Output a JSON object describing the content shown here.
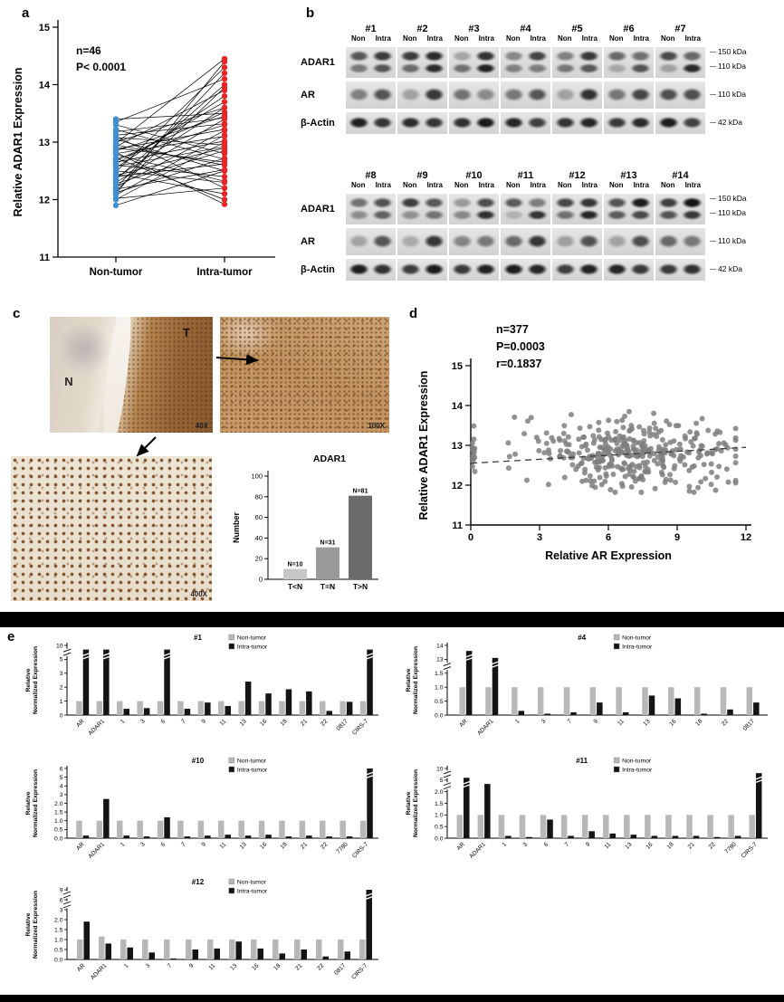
{
  "panel_labels": {
    "a": "a",
    "b": "b",
    "c": "c",
    "d": "d",
    "e": "e"
  },
  "panel_b": {
    "row_labels": [
      "ADAR1",
      "AR",
      "β-Actin"
    ],
    "lane_labels": [
      "Non",
      "Intra"
    ],
    "blocks": [
      {
        "samples": [
          "#1",
          "#2",
          "#3",
          "#4",
          "#5",
          "#6",
          "#7"
        ],
        "markers": {
          "adar1": [
            "150 kDa",
            "110 kDa"
          ],
          "ar": [
            "110 kDa"
          ],
          "actin": [
            "42 kDa"
          ]
        }
      },
      {
        "samples": [
          "#8",
          "#9",
          "#10",
          "#11",
          "#12",
          "#13",
          "#14"
        ],
        "markers": {
          "adar1": [
            "150 kDa",
            "110 kDa"
          ],
          "ar": [
            "110 kDa"
          ],
          "actin": [
            "42 kDa"
          ]
        }
      }
    ]
  },
  "panel_c": {
    "t": "T",
    "n": "N",
    "mag40": "40X",
    "mag100": "100X",
    "mag400": "400X"
  },
  "chart_data": [
    {
      "id": "panel-a-paired",
      "type": "line",
      "title": "",
      "ylabel": "Relative ADAR1 Expression",
      "categories": [
        "Non-tumor",
        "Intra-tumor"
      ],
      "ylim": [
        11,
        15
      ],
      "yticks": [
        11,
        12,
        13,
        14,
        15
      ],
      "annotations": [
        "n=46",
        "P< 0.0001"
      ],
      "colors": {
        "non_tumor": "#3f8fd2",
        "intra_tumor": "#e8262a"
      },
      "pairs": [
        [
          12.85,
          13.45
        ],
        [
          12.1,
          14.4
        ],
        [
          12.95,
          12.6
        ],
        [
          12.3,
          13.4
        ],
        [
          12.45,
          12.1
        ],
        [
          12.55,
          13.8
        ],
        [
          12.6,
          12.4
        ],
        [
          12.7,
          13.3
        ],
        [
          12.2,
          14.2
        ],
        [
          12.9,
          12.65
        ],
        [
          13.0,
          13.6
        ],
        [
          13.1,
          12.2
        ],
        [
          12.15,
          13.95
        ],
        [
          13.3,
          12.8
        ],
        [
          13.4,
          13.5
        ],
        [
          11.9,
          12.5
        ],
        [
          12.0,
          13.0
        ],
        [
          12.12,
          12.72
        ],
        [
          12.22,
          13.2
        ],
        [
          12.35,
          14.0
        ],
        [
          12.42,
          12.9
        ],
        [
          12.5,
          12.3
        ],
        [
          12.62,
          13.7
        ],
        [
          12.72,
          12.0
        ],
        [
          12.8,
          13.1
        ],
        [
          12.92,
          13.9
        ],
        [
          13.05,
          12.5
        ],
        [
          13.12,
          13.32
        ],
        [
          13.22,
          12.7
        ],
        [
          13.35,
          14.1
        ],
        [
          12.02,
          12.2
        ],
        [
          12.08,
          13.12
        ],
        [
          12.18,
          12.52
        ],
        [
          12.28,
          12.85
        ],
        [
          12.38,
          13.6
        ],
        [
          12.48,
          14.3
        ],
        [
          12.58,
          12.92
        ],
        [
          12.68,
          13.52
        ],
        [
          12.78,
          12.32
        ],
        [
          12.88,
          13.22
        ],
        [
          12.98,
          14.45
        ],
        [
          13.08,
          12.95
        ],
        [
          13.18,
          13.42
        ],
        [
          12.4,
          12.62
        ],
        [
          12.65,
          13.02
        ],
        [
          12.82,
          11.92
        ]
      ]
    },
    {
      "id": "ihc-adar1-counts",
      "type": "bar",
      "title": "ADAR1",
      "ylabel": "Number",
      "categories": [
        "T<N",
        "T=N",
        "T>N"
      ],
      "values": [
        10,
        31,
        81
      ],
      "bar_labels": [
        "N=10",
        "N=31",
        "N=81"
      ],
      "ylim": [
        0,
        100
      ],
      "yticks": [
        0,
        20,
        40,
        60,
        80,
        100
      ],
      "colors": [
        "#c6c6c6",
        "#9a9a9a",
        "#6b6b6b"
      ]
    },
    {
      "id": "panel-d-scatter",
      "type": "scatter",
      "xlabel": "Relative AR Expression",
      "ylabel": "Relative ADAR1 Expression",
      "xlim": [
        0,
        12
      ],
      "ylim": [
        11,
        15
      ],
      "xticks": [
        0,
        3,
        6,
        9,
        12
      ],
      "yticks": [
        11,
        12,
        13,
        14,
        15
      ],
      "annotations": [
        "n=377",
        "P=0.0003",
        "r=0.1837"
      ],
      "n_points": 377,
      "point_color": "#7f7f7f",
      "trendline": {
        "x0": 0,
        "y0": 12.55,
        "x1": 12,
        "y1": 12.95
      }
    },
    {
      "id": "#1",
      "type": "bar",
      "title": "#1",
      "ylabel_lines": [
        "Relative",
        "Normalized Expression"
      ],
      "legend": [
        {
          "label": "Non-tumor",
          "color": "#b8b8b8"
        },
        {
          "label": "Intra-tumor",
          "color": "#141414"
        }
      ],
      "categories": [
        "AR",
        "ADAR1",
        "1",
        "3",
        "6",
        "7",
        "9",
        "11",
        "13",
        "16",
        "18",
        "21",
        "22",
        "0817",
        "CIRS-7"
      ],
      "yticks": [
        0,
        1,
        2,
        3,
        5,
        10
      ],
      "series": [
        {
          "name": "Non-tumor",
          "color": "#b8b8b8",
          "values": [
            1,
            1,
            1,
            1,
            1,
            1,
            1,
            1,
            1,
            1,
            1,
            1,
            1,
            1,
            1
          ]
        },
        {
          "name": "Intra-tumor",
          "color": "#141414",
          "values": [
            8.5,
            8.5,
            0.45,
            0.5,
            8.5,
            0.45,
            0.9,
            0.65,
            2.4,
            1.55,
            1.85,
            1.7,
            0.3,
            0.95,
            8.5
          ]
        }
      ]
    },
    {
      "id": "#4",
      "type": "bar",
      "title": "#4",
      "ylabel_lines": [
        "Relative",
        "Normalized Expression"
      ],
      "legend": [
        {
          "label": "Non-tumor",
          "color": "#b8b8b8"
        },
        {
          "label": "Intra-tumor",
          "color": "#141414"
        }
      ],
      "categories": [
        "AR",
        "ADAR1",
        "1",
        "3",
        "7",
        "9",
        "11",
        "13",
        "16",
        "18",
        "22",
        "0817"
      ],
      "yticks": [
        0,
        0.5,
        1,
        1.5,
        13,
        14
      ],
      "series": [
        {
          "name": "Non-tumor",
          "color": "#b8b8b8",
          "values": [
            1,
            1,
            1,
            1,
            1,
            1,
            1,
            1,
            1,
            1,
            1,
            1
          ]
        },
        {
          "name": "Intra-tumor",
          "color": "#141414",
          "values": [
            13.6,
            13.1,
            0.15,
            0.05,
            0.1,
            0.45,
            0.1,
            0.7,
            0.6,
            0.05,
            0.2,
            0.45
          ]
        }
      ]
    },
    {
      "id": "#10",
      "type": "bar",
      "title": "#10",
      "ylabel_lines": [
        "Relative",
        "Normalized Expression"
      ],
      "legend": [
        {
          "label": "Non-tumor",
          "color": "#b8b8b8"
        },
        {
          "label": "Intra-tumor",
          "color": "#141414"
        }
      ],
      "categories": [
        "AR",
        "ADAR1",
        "1",
        "3",
        "6",
        "7",
        "9",
        "11",
        "13",
        "16",
        "18",
        "21",
        "22",
        "7780",
        "CIRS-7"
      ],
      "yticks": [
        0,
        0.5,
        1,
        1.5,
        2,
        3,
        4,
        5,
        6
      ],
      "series": [
        {
          "name": "Non-tumor",
          "color": "#b8b8b8",
          "values": [
            1,
            1,
            1,
            1,
            1,
            1,
            1,
            1,
            1,
            1,
            1,
            1,
            1,
            1,
            1
          ]
        },
        {
          "name": "Intra-tumor",
          "color": "#141414",
          "values": [
            0.15,
            2.5,
            0.15,
            0.1,
            1.2,
            0.1,
            0.15,
            0.2,
            0.15,
            0.2,
            0.1,
            0.15,
            0.1,
            0.1,
            6
          ]
        }
      ]
    },
    {
      "id": "#11",
      "type": "bar",
      "title": "#11",
      "ylabel_lines": [
        "Relative",
        "Normalized Expression"
      ],
      "legend": [
        {
          "label": "Non-tumor",
          "color": "#b8b8b8"
        },
        {
          "label": "Intra-tumor",
          "color": "#141414"
        }
      ],
      "categories": [
        "AR",
        "ADAR1",
        "1",
        "3",
        "6",
        "7",
        "9",
        "11",
        "13",
        "16",
        "18",
        "21",
        "22",
        "7780",
        "CIRS-7"
      ],
      "yticks": [
        0,
        0.5,
        1,
        1.5,
        2,
        5,
        10
      ],
      "series": [
        {
          "name": "Non-tumor",
          "color": "#b8b8b8",
          "values": [
            1,
            1,
            1,
            1,
            1,
            1,
            1,
            1,
            1,
            1,
            1,
            1,
            1,
            1,
            1
          ]
        },
        {
          "name": "Intra-tumor",
          "color": "#141414",
          "values": [
            6,
            4,
            0.1,
            0.05,
            0.8,
            0.1,
            0.3,
            0.2,
            0.15,
            0.1,
            0.1,
            0.1,
            0.05,
            0.1,
            8
          ]
        }
      ]
    },
    {
      "id": "#12",
      "type": "bar",
      "title": "#12",
      "ylabel_lines": [
        "Relative",
        "Normalized Expression"
      ],
      "legend": [
        {
          "label": "Non-tumor",
          "color": "#b8b8b8"
        },
        {
          "label": "Intra-tumor",
          "color": "#141414"
        }
      ],
      "categories": [
        "AR",
        "ADAR1",
        "1",
        "3",
        "7",
        "9",
        "11",
        "13",
        "16",
        "18",
        "21",
        "22",
        "0817",
        "CIRS-7"
      ],
      "yticks": [
        0,
        0.5,
        1,
        1.5,
        2,
        3,
        6,
        9
      ],
      "series": [
        {
          "name": "Non-tumor",
          "color": "#b8b8b8",
          "values": [
            1,
            1.15,
            1,
            1,
            1,
            1,
            1,
            1,
            1,
            1,
            1,
            1,
            1,
            1
          ]
        },
        {
          "name": "Intra-tumor",
          "color": "#141414",
          "values": [
            1.9,
            0.8,
            0.6,
            0.35,
            0.05,
            0.5,
            0.55,
            0.9,
            0.55,
            0.3,
            0.5,
            0.15,
            0.4,
            9
          ]
        }
      ]
    }
  ]
}
